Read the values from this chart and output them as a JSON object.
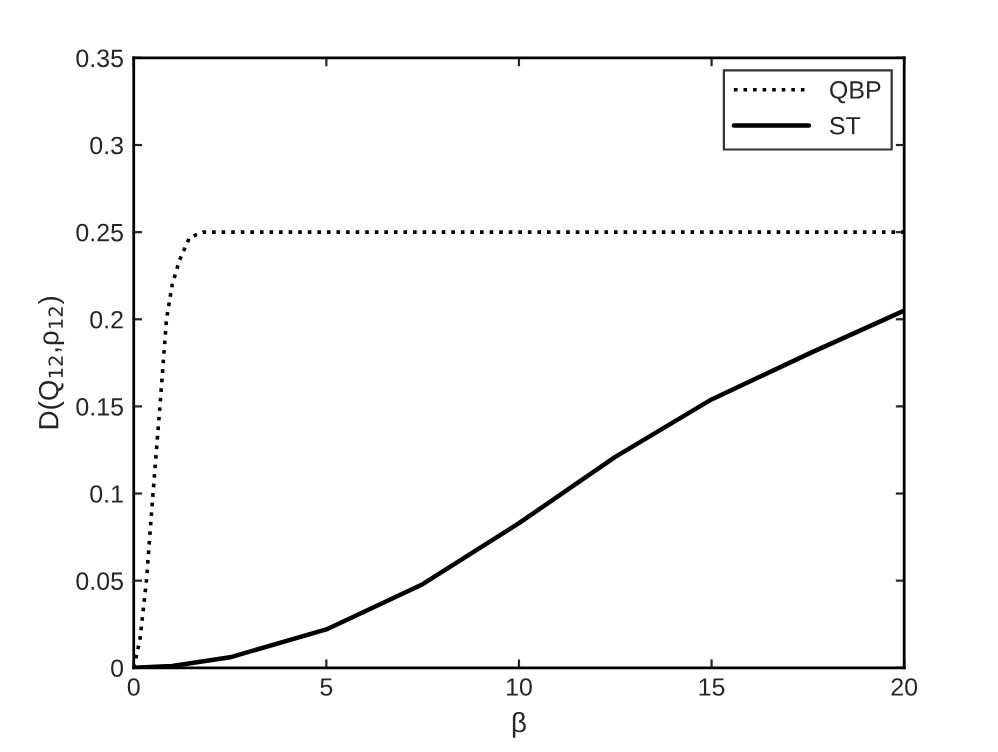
{
  "chart_data": {
    "type": "line",
    "xlabel": "β",
    "ylabel": "D(Q$_{12}$,ρ$_{12}$)",
    "xlim": [
      0,
      20
    ],
    "ylim": [
      0,
      0.35
    ],
    "xticks": [
      0,
      5,
      10,
      15,
      20
    ],
    "yticks": [
      0,
      0.05,
      0.1,
      0.15,
      0.2,
      0.25,
      0.3,
      0.35
    ],
    "grid": false,
    "legend": "top right",
    "series": [
      {
        "name": "QBP",
        "color": "#000000",
        "line_style": "dotted",
        "x": [
          0,
          0.16,
          0.33,
          0.5,
          0.68,
          0.85,
          1.0,
          1.19,
          1.45,
          1.8,
          2.5,
          5,
          10,
          15,
          20
        ],
        "values": [
          0,
          0.016,
          0.05,
          0.1,
          0.15,
          0.2,
          0.22,
          0.234,
          0.247,
          0.25,
          0.25,
          0.25,
          0.25,
          0.25,
          0.25
        ]
      },
      {
        "name": "ST",
        "color": "#000000",
        "line_style": "solid",
        "x": [
          0,
          1,
          2.5,
          5,
          7.5,
          10,
          12.5,
          15,
          17.5,
          20
        ],
        "values": [
          0,
          0.001,
          0.006,
          0.022,
          0.048,
          0.083,
          0.121,
          0.154,
          0.18,
          0.205
        ]
      }
    ]
  }
}
